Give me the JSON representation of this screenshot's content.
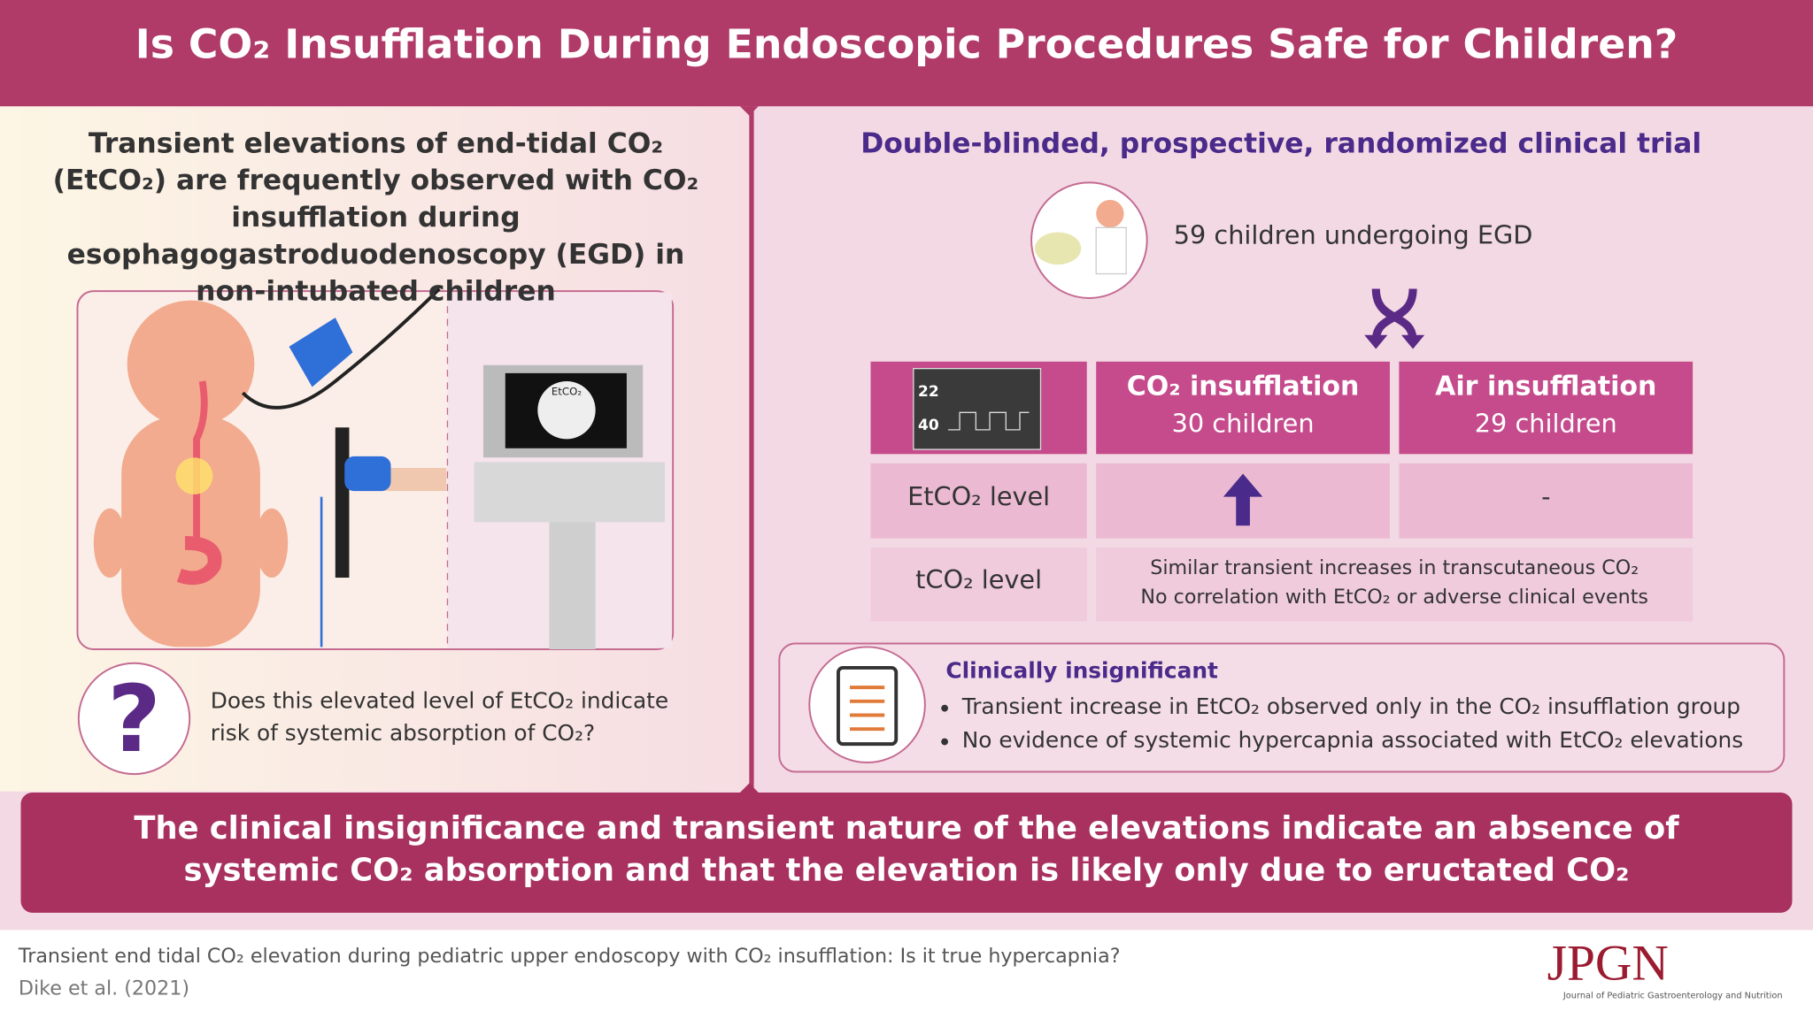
{
  "header": {
    "title": "Is CO₂ Insufflation During Endoscopic Procedures Safe for Children?"
  },
  "left": {
    "intro": "Transient elevations of end-tidal CO₂ (EtCO₂) are frequently observed with CO₂ insufflation during esophagogastroduodenoscopy (EGD) in non-intubated children",
    "monitor_label": "EtCO₂",
    "question": "Does this elevated level of EtCO₂ indicate risk of systemic absorption of CO₂?"
  },
  "right": {
    "trial_title": "Double-blinded, prospective, randomized clinical trial",
    "cohort": "59 children undergoing EGD"
  },
  "table": {
    "monitor": [
      "22",
      "40"
    ],
    "groups": [
      {
        "name": "CO₂ insufflation",
        "count": "30 children"
      },
      {
        "name": "Air insufflation",
        "count": "29 children"
      }
    ],
    "etco2": {
      "label": "EtCO₂ level",
      "air": "-"
    },
    "tco2": {
      "label": "tCO₂ level",
      "notes": [
        "Similar transient increases in transcutaneous CO₂",
        "No correlation with EtCO₂ or adverse clinical events"
      ]
    }
  },
  "summary": {
    "title": "Clinically insignificant",
    "bullets": [
      "Transient increase in EtCO₂ observed only in the CO₂ insufflation group",
      "No evidence of systemic hypercapnia associated with EtCO₂ elevations"
    ]
  },
  "conclusion": "The clinical insignificance and transient nature of the elevations indicate an absence of systemic CO₂ absorption and that the elevation is likely only due to eructated CO₂",
  "footer": {
    "citation": "Transient end tidal CO₂ elevation during pediatric upper endoscopy with CO₂ insufflation: Is it true hypercapnia?",
    "authors": "Dike et al. (2021)",
    "logo": "JPGN",
    "journal": "Journal of Pediatric Gastroenterology and Nutrition"
  }
}
